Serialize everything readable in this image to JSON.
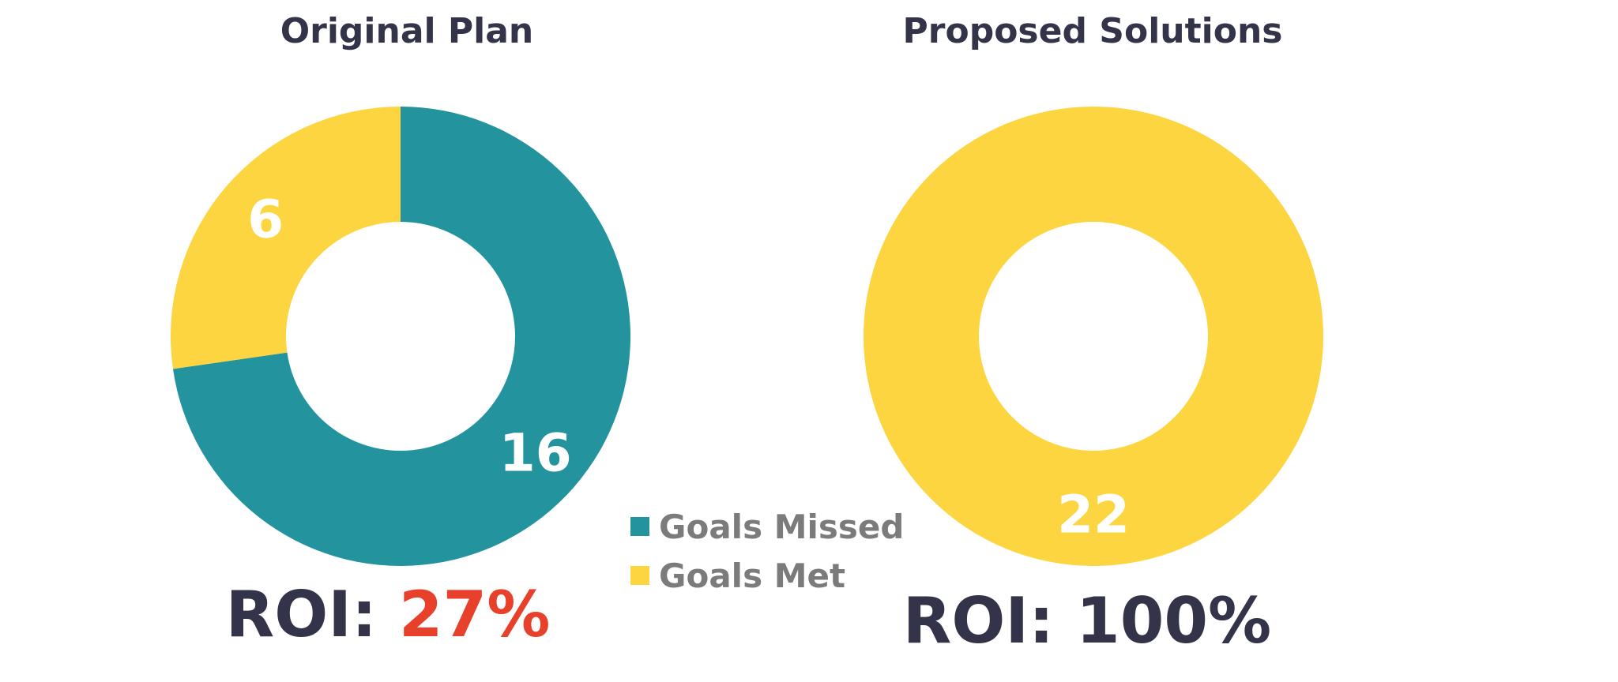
{
  "chart_data": [
    {
      "type": "pie",
      "title": "Original Plan",
      "categories": [
        "Goals Missed",
        "Goals Met"
      ],
      "values": [
        16,
        6
      ],
      "colors": [
        "#23939e",
        "#fdd540"
      ],
      "hole": true,
      "roi": {
        "label": "ROI:",
        "value": "27%",
        "value_color": "#e8412b"
      }
    },
    {
      "type": "pie",
      "title": "Proposed Solutions",
      "categories": [
        "Goals Met"
      ],
      "values": [
        22
      ],
      "colors": [
        "#fdd540"
      ],
      "hole": true,
      "roi": {
        "label": "ROI:",
        "value": "100%",
        "value_color": "#33334a"
      }
    }
  ],
  "legend": {
    "placement": "center-bottom",
    "items": [
      {
        "label": "Goals Missed",
        "color": "#23939e"
      },
      {
        "label": "Goals Met",
        "color": "#fdd540"
      }
    ]
  }
}
